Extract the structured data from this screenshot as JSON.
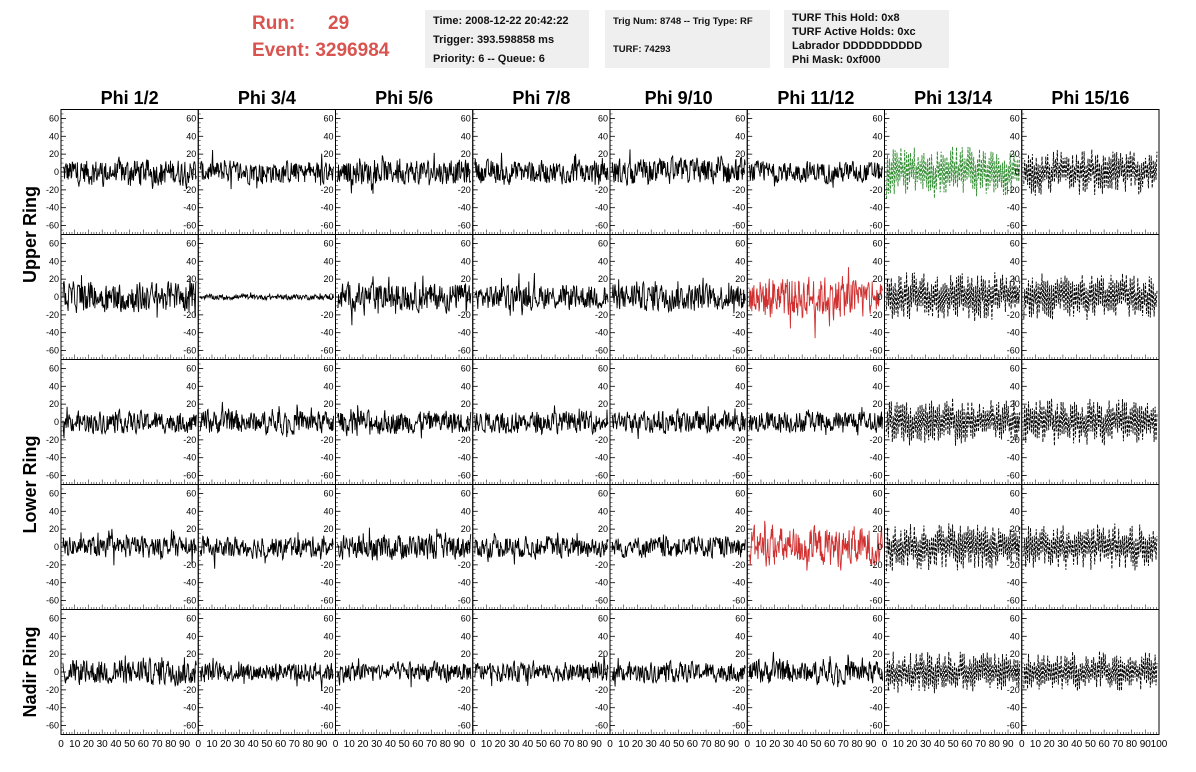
{
  "header": {
    "run_label": "Run:",
    "run_value": "29",
    "event_label": "Event:",
    "event_value": "3296984",
    "box1": [
      "Time: 2008-12-22 20:42:22",
      "Trigger: 393.598858 ms",
      "Priority: 6 -- Queue: 6"
    ],
    "box2": [
      "Trig Num: 8748 -- Trig Type: RF",
      "TURF: 74293"
    ],
    "box3": [
      "TURF This Hold: 0x8",
      "TURF Active Holds: 0xc",
      "Labrador DDDDDDDDDD",
      "Phi Mask: 0xf000"
    ]
  },
  "colors": {
    "normal": "#000000",
    "triggered": "#d03030",
    "green": "#2e8b2e"
  },
  "chart_data": {
    "type": "line",
    "columns": [
      "Phi 1/2",
      "Phi 3/4",
      "Phi 5/6",
      "Phi 7/8",
      "Phi 9/10",
      "Phi 11/12",
      "Phi 13/14",
      "Phi 15/16"
    ],
    "row_groups": [
      "Upper Ring",
      "Lower Ring",
      "Nadir Ring"
    ],
    "rows": 5,
    "ylim": [
      -70,
      70
    ],
    "y_ticks": [
      -60,
      -40,
      -20,
      0,
      20,
      40,
      60
    ],
    "xlim": [
      0,
      100
    ],
    "x_ticks": [
      0,
      10,
      20,
      30,
      40,
      50,
      60,
      70,
      80,
      90,
      100
    ],
    "amplitude": [
      [
        15,
        13,
        14,
        13,
        15,
        12,
        26,
        24
      ],
      [
        17,
        3,
        16,
        14,
        15,
        24,
        25,
        24
      ],
      [
        12,
        13,
        13,
        12,
        12,
        12,
        24,
        24
      ],
      [
        12,
        12,
        14,
        12,
        12,
        22,
        24,
        24
      ],
      [
        14,
        11,
        11,
        11,
        11,
        13,
        22,
        21
      ]
    ],
    "style": [
      [
        "normal",
        "normal",
        "normal",
        "normal",
        "normal",
        "normal",
        "green-dashed",
        "dashed"
      ],
      [
        "normal",
        "normal",
        "normal",
        "normal",
        "normal",
        "triggered",
        "dashed",
        "dashed"
      ],
      [
        "normal",
        "normal",
        "normal",
        "normal",
        "normal",
        "normal",
        "dashed",
        "dashed"
      ],
      [
        "normal",
        "normal",
        "normal",
        "normal",
        "normal",
        "triggered",
        "dashed",
        "dashed"
      ],
      [
        "normal",
        "normal",
        "normal",
        "normal",
        "normal",
        "normal",
        "dashed",
        "dashed"
      ]
    ]
  }
}
